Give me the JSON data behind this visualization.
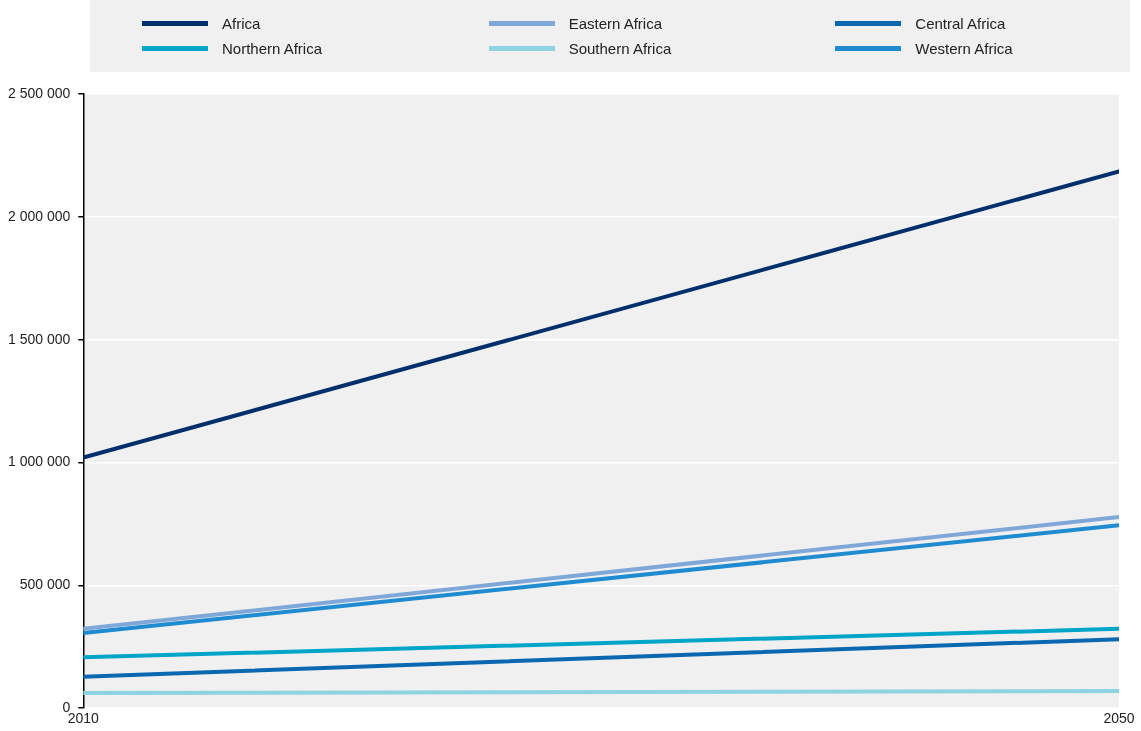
{
  "chart_data": {
    "type": "line",
    "x": [
      2010,
      2050
    ],
    "xlim": [
      2010,
      2050
    ],
    "xticks": [
      2010,
      2050
    ],
    "ylim": [
      0,
      2500000
    ],
    "yticks": [
      0,
      500000,
      1000000,
      1500000,
      2000000,
      2500000
    ],
    "grid": "y",
    "legend": "top",
    "marker": "none",
    "line_style": "solid",
    "series": [
      {
        "name": "Africa",
        "color": "#002f6c",
        "values": [
          1020000,
          2185000
        ]
      },
      {
        "name": "Eastern Africa",
        "color": "#7fa8d9",
        "values": [
          323000,
          778000
        ]
      },
      {
        "name": "Central Africa",
        "color": "#0a68b0",
        "values": [
          128000,
          281000
        ]
      },
      {
        "name": "Northern Africa",
        "color": "#00a5c8",
        "values": [
          207000,
          323000
        ]
      },
      {
        "name": "Southern Africa",
        "color": "#8dd3e1",
        "values": [
          62000,
          70000
        ]
      },
      {
        "name": "Western Africa",
        "color": "#1f8bd0",
        "values": [
          306000,
          745000
        ]
      }
    ]
  }
}
